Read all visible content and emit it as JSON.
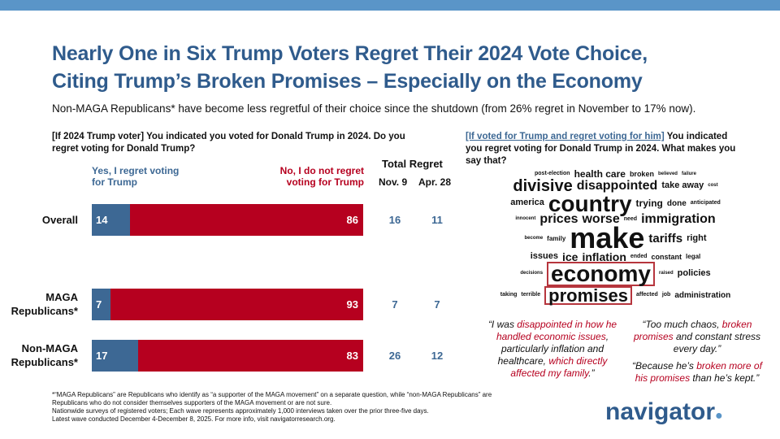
{
  "title_line1": "Nearly One in Six Trump Voters Regret Their 2024 Vote Choice,",
  "title_line2": "Citing Trump’s Broken Promises – Especially on the Economy",
  "subtitle": "Non-MAGA Republicans* have become less regretful of their choice since the shutdown (from 26% regret in November to 17% now).",
  "left_question": "[If 2024 Trump voter] You indicated you voted for Donald Trump in 2024. Do you regret voting for Donald Trump?",
  "legend": {
    "yes": "Yes, I regret voting for Trump",
    "no": "No, I do not regret voting for Trump"
  },
  "total_regret": {
    "header": "Total Regret",
    "col1": "Nov. 9",
    "col2": "Apr. 28"
  },
  "rows": [
    {
      "label": "Overall",
      "yes": 14,
      "no": 86,
      "nov": "16",
      "apr": "11"
    },
    {
      "label": "MAGA Republicans*",
      "yes": 7,
      "no": 93,
      "nov": "7",
      "apr": "7"
    },
    {
      "label": "Non-MAGA Republicans*",
      "yes": 17,
      "no": 83,
      "nov": "26",
      "apr": "12"
    }
  ],
  "right_question_prefix": "[If voted for Trump and regret voting for him]",
  "right_question": " You indicated you regret voting for Donald Trump in 2024. What makes you say that?",
  "words": [
    "post-election",
    "health care",
    "broken",
    "believed",
    "failure",
    "divisive",
    "disappointed",
    "take away",
    "trying",
    "cost",
    "country",
    "america",
    "done",
    "anticipated",
    "innocent",
    "prices",
    "worse",
    "need",
    "immigration",
    "become",
    "family",
    "ended",
    "right",
    "make",
    "tariffs",
    "issues",
    "ice",
    "inflation",
    "constant",
    "legal",
    "economy",
    "decisions",
    "policies",
    "terrible",
    "affected",
    "taking",
    "raised",
    "promises",
    "job",
    "administration"
  ],
  "quote1": {
    "a": "“I was ",
    "b": "disappointed in how he handled economic issues",
    "c": ", particularly inflation and healthcare, ",
    "d": "which directly affected my family",
    "e": ".”"
  },
  "quote2": {
    "a": "“Too much chaos, ",
    "b": "broken promises",
    "c": " and constant stress every day.”"
  },
  "quote3": {
    "a": "“Because he’s ",
    "b": "broken more of his promises",
    "c": " than he’s kept.”"
  },
  "footnote": [
    "*“MAGA Republicans” are Republicans who identify as “a supporter of the MAGA movement” on a separate question, while “non-MAGA Republicans” are Republicans who do not consider themselves supporters of the MAGA movement or are not sure.",
    "Nationwide surveys of registered voters; Each wave represents approximately 1,000 interviews taken over the prior three-five days.",
    "Latest wave conducted December 4-December 8, 2025. For more info, visit navigatorresearch.org."
  ],
  "logo": "navigator",
  "colors": {
    "blue": "#3d6894",
    "red": "#b6001f",
    "title": "#2f5b8c"
  }
}
